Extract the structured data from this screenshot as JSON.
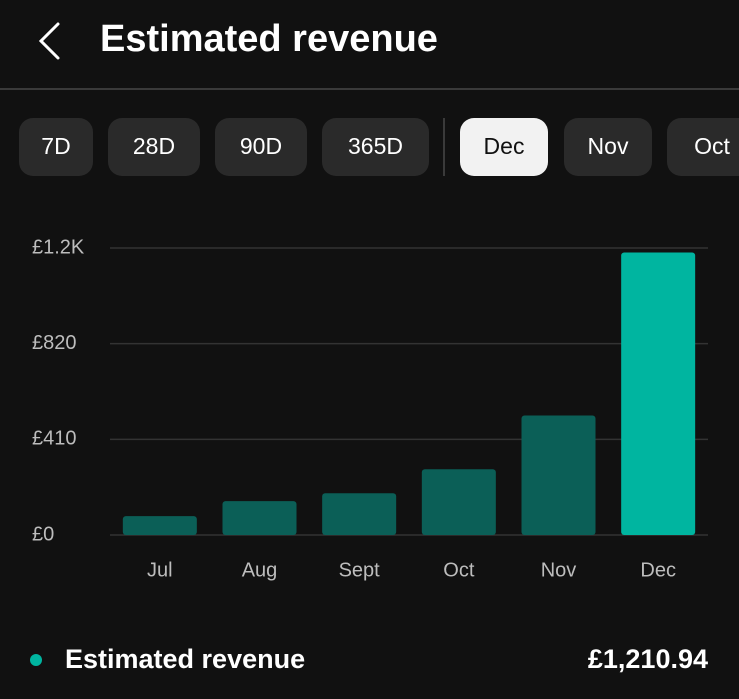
{
  "header": {
    "title": "Estimated revenue"
  },
  "filters": [
    {
      "label": "7D",
      "selected": false
    },
    {
      "label": "28D",
      "selected": false
    },
    {
      "label": "90D",
      "selected": false
    },
    {
      "label": "365D",
      "selected": false
    },
    {
      "label": "Dec",
      "selected": true
    },
    {
      "label": "Nov",
      "selected": false
    },
    {
      "label": "Oct",
      "selected": false
    }
  ],
  "chart_data": {
    "type": "bar",
    "categories": [
      "Jul",
      "Aug",
      "Sept",
      "Oct",
      "Nov",
      "Dec"
    ],
    "values": [
      81,
      145,
      179,
      282,
      512,
      1210.94
    ],
    "colors": [
      "#0b5f57",
      "#0b5f57",
      "#0b5f57",
      "#0b5f57",
      "#0b5f57",
      "#00b5a0"
    ],
    "ylim": [
      0,
      1230
    ],
    "yticks": [
      {
        "value": 0,
        "label": "£0"
      },
      {
        "value": 410,
        "label": "£410"
      },
      {
        "value": 820,
        "label": "£820"
      },
      {
        "value": 1230,
        "label": "£1.2K"
      }
    ],
    "grid": true
  },
  "summary": {
    "label": "Estimated revenue",
    "value": "£1,210.94",
    "color": "#00b5a0"
  }
}
